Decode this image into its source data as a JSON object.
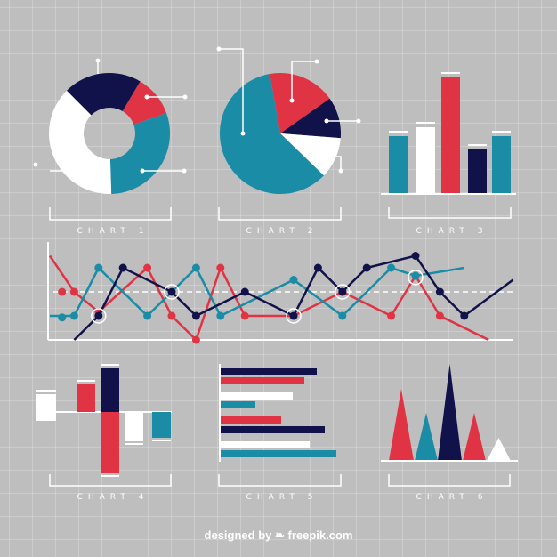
{
  "colors": {
    "navy": "#12124a",
    "red": "#e03444",
    "teal": "#1a8ca6",
    "white": "#ffffff",
    "background": "#bebebe"
  },
  "chart_data": [
    {
      "type": "pie",
      "variant": "donut",
      "label": "CHART 1",
      "slices": [
        {
          "color": "navy",
          "value": 21
        },
        {
          "color": "red",
          "value": 11
        },
        {
          "color": "teal",
          "value": 30
        },
        {
          "color": "white",
          "value": 38
        }
      ]
    },
    {
      "type": "pie",
      "label": "CHART 2",
      "slices": [
        {
          "color": "red",
          "value": 18
        },
        {
          "color": "navy",
          "value": 11
        },
        {
          "color": "white",
          "value": 11
        },
        {
          "color": "teal",
          "value": 60
        }
      ]
    },
    {
      "type": "bar",
      "label": "CHART 3",
      "bars": [
        {
          "color": "teal",
          "value": 65
        },
        {
          "color": "white",
          "value": 75
        },
        {
          "color": "red",
          "value": 131
        },
        {
          "color": "navy",
          "value": 50
        },
        {
          "color": "teal",
          "value": 65
        }
      ]
    },
    {
      "type": "line",
      "reference_line": 6,
      "xlim": [
        0,
        19
      ],
      "ylim": [
        0,
        11
      ],
      "series": [
        {
          "color": "red",
          "x": [
            0,
            1,
            2,
            4,
            5,
            6,
            7,
            8,
            10,
            12,
            14,
            15,
            16,
            18
          ],
          "y": [
            10.5,
            6,
            3.5,
            9,
            3,
            0,
            9,
            3,
            3,
            6,
            3,
            8,
            3,
            0
          ]
        },
        {
          "color": "teal",
          "x": [
            0,
            1,
            2,
            4,
            6,
            7,
            10,
            12,
            14,
            15,
            17
          ],
          "y": [
            3,
            3,
            9,
            3,
            9,
            3,
            7.5,
            3,
            9,
            8,
            9
          ]
        },
        {
          "color": "navy",
          "x": [
            1,
            2,
            3,
            5,
            6,
            8,
            10,
            11,
            12,
            13,
            15,
            16,
            17,
            19
          ],
          "y": [
            0,
            3,
            9,
            6,
            3,
            6,
            3,
            9,
            6,
            9,
            10.5,
            6,
            3,
            7.5
          ]
        }
      ],
      "loose_points": [
        {
          "color": "red",
          "x": 0.5,
          "y": 6
        },
        {
          "color": "teal",
          "x": 0.5,
          "y": 2.8
        }
      ],
      "highlights": [
        {
          "x": 2,
          "y": 3
        },
        {
          "x": 5,
          "y": 6
        },
        {
          "x": 10,
          "y": 3
        },
        {
          "x": 12,
          "y": 6
        },
        {
          "x": 15,
          "y": 7.8
        }
      ]
    },
    {
      "type": "bar",
      "variant": "diverging",
      "label": "CHART 4",
      "bars": [
        {
          "color": "white",
          "range": [
            -10,
            20
          ]
        },
        {
          "color": "red",
          "range": [
            0,
            31
          ]
        },
        {
          "color": "navy",
          "range": [
            0,
            49
          ]
        },
        {
          "color": "red",
          "range": [
            -69,
            0
          ]
        },
        {
          "color": "white",
          "range": [
            -33,
            0
          ]
        },
        {
          "color": "teal",
          "range": [
            -29,
            0
          ]
        }
      ]
    },
    {
      "type": "bar",
      "orientation": "horizontal",
      "label": "CHART 5",
      "bars": [
        {
          "color": "navy",
          "value": 109
        },
        {
          "color": "red",
          "value": 95
        },
        {
          "color": "white",
          "value": 82
        },
        {
          "color": "teal",
          "value": 40
        },
        {
          "color": "red",
          "value": 69
        },
        {
          "color": "navy",
          "value": 118
        },
        {
          "color": "white",
          "value": 101
        },
        {
          "color": "teal",
          "value": 131
        }
      ]
    },
    {
      "type": "area",
      "variant": "triangles",
      "label": "CHART 6",
      "peaks": [
        {
          "color": "red",
          "value": 81
        },
        {
          "color": "teal",
          "value": 54
        },
        {
          "color": "navy",
          "value": 109
        },
        {
          "color": "red",
          "value": 54
        },
        {
          "color": "white",
          "value": 26
        }
      ]
    }
  ],
  "footer": {
    "credit": "designed by ❧ freepik.com"
  }
}
